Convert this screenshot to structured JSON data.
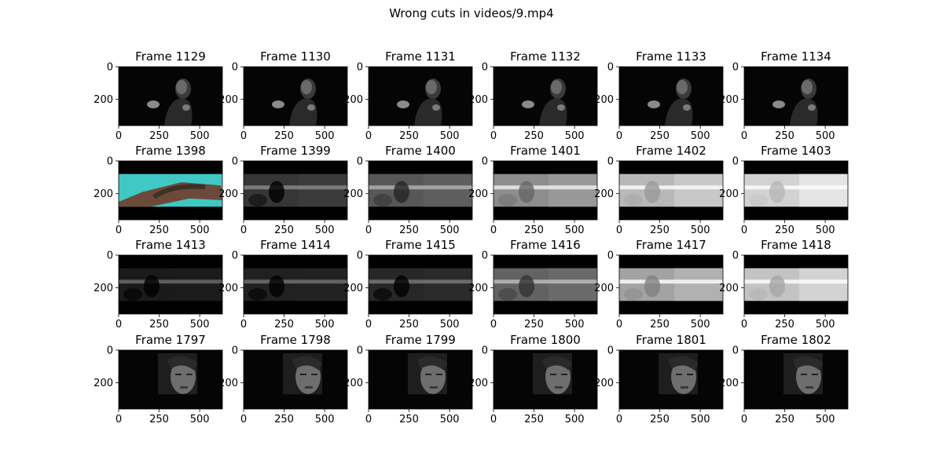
{
  "figure_title": "Wrong cuts in videos/9.mp4",
  "chart_data": {
    "type": "image-grid",
    "title": "Wrong cuts in videos/9.mp4",
    "grid_rows": 4,
    "grid_cols": 6,
    "frame_width": 640,
    "frame_height": 360,
    "x_ticks": [
      0,
      250,
      500
    ],
    "y_ticks": [
      0,
      200
    ],
    "rows": [
      {
        "frames": [
          {
            "label": "Frame 1129",
            "scene": "dark-portrait"
          },
          {
            "label": "Frame 1130",
            "scene": "dark-portrait"
          },
          {
            "label": "Frame 1131",
            "scene": "dark-portrait"
          },
          {
            "label": "Frame 1132",
            "scene": "dark-portrait"
          },
          {
            "label": "Frame 1133",
            "scene": "dark-portrait"
          },
          {
            "label": "Frame 1134",
            "scene": "dark-portrait"
          }
        ]
      },
      {
        "frames": [
          {
            "label": "Frame 1398",
            "scene": "cyan-tattoo-hand"
          },
          {
            "label": "Frame 1399",
            "scene": "streak",
            "brightness": 0.25
          },
          {
            "label": "Frame 1400",
            "scene": "streak",
            "brightness": 0.4
          },
          {
            "label": "Frame 1401",
            "scene": "streak",
            "brightness": 0.65
          },
          {
            "label": "Frame 1402",
            "scene": "streak",
            "brightness": 0.85
          },
          {
            "label": "Frame 1403",
            "scene": "streak",
            "brightness": 0.97
          }
        ]
      },
      {
        "frames": [
          {
            "label": "Frame 1413",
            "scene": "streak",
            "brightness": 0.12
          },
          {
            "label": "Frame 1414",
            "scene": "streak",
            "brightness": 0.15
          },
          {
            "label": "Frame 1415",
            "scene": "streak",
            "brightness": 0.18
          },
          {
            "label": "Frame 1416",
            "scene": "streak",
            "brightness": 0.45
          },
          {
            "label": "Frame 1417",
            "scene": "streak",
            "brightness": 0.75
          },
          {
            "label": "Frame 1418",
            "scene": "streak",
            "brightness": 0.9
          }
        ]
      },
      {
        "frames": [
          {
            "label": "Frame 1797",
            "scene": "face-closeup"
          },
          {
            "label": "Frame 1798",
            "scene": "face-closeup"
          },
          {
            "label": "Frame 1799",
            "scene": "face-closeup"
          },
          {
            "label": "Frame 1800",
            "scene": "face-closeup"
          },
          {
            "label": "Frame 1801",
            "scene": "face-closeup"
          },
          {
            "label": "Frame 1802",
            "scene": "face-closeup"
          }
        ]
      }
    ]
  }
}
